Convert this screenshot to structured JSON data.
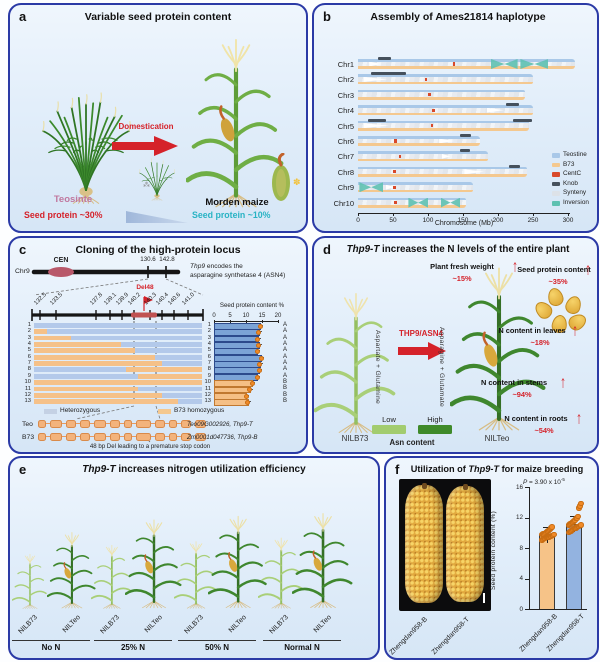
{
  "panel_a": {
    "letter": "a",
    "title": "Variable seed protein content",
    "domestication": "Domestication",
    "teosinte": "Teosinte",
    "maize": "Morden maize",
    "protein_left": "Seed protein ~30%",
    "protein_right": "Seed protein ~10%"
  },
  "panel_b": {
    "letter": "b",
    "title": "Assembly of Ames21814 haplotype",
    "xlabel": "Chromosome (Mb)",
    "xticks": [
      0,
      50,
      100,
      150,
      200,
      250,
      300
    ],
    "legend": [
      {
        "label": "Teostine",
        "color": "#a9c8e8"
      },
      {
        "label": "B73",
        "color": "#f4c88f"
      },
      {
        "label": "CentC",
        "color": "#d8492b"
      },
      {
        "label": "Knob",
        "color": "#45505c"
      },
      {
        "label": "Synteny",
        "color": "#dde2e8"
      },
      {
        "label": "Inversion",
        "color": "#5ec1b1"
      }
    ],
    "chromosomes": [
      {
        "name": "Chr1",
        "len": 310,
        "knobs": [
          [
            28,
            47
          ]
        ],
        "inversions": [
          [
            190,
            228
          ],
          [
            232,
            272
          ]
        ],
        "gaps": [
          [
            16,
            34
          ]
        ],
        "cent": 135
      },
      {
        "name": "Chr2",
        "len": 250,
        "knobs": [
          [
            18,
            68
          ]
        ],
        "inversions": [],
        "gaps": [
          [
            8,
            42
          ]
        ],
        "cent": 95
      },
      {
        "name": "Chr3",
        "len": 238,
        "knobs": [],
        "inversions": [],
        "gaps": [],
        "cent": 100
      },
      {
        "name": "Chr4",
        "len": 250,
        "knobs": [
          [
            212,
            230
          ]
        ],
        "inversions": [],
        "gaps": [
          [
            184,
            208
          ]
        ],
        "cent": 106
      },
      {
        "name": "Chr5",
        "len": 244,
        "knobs": [
          [
            14,
            40
          ],
          [
            222,
            248
          ]
        ],
        "inversions": [],
        "gaps": [
          [
            8,
            44
          ]
        ],
        "cent": 104
      },
      {
        "name": "Chr6",
        "len": 174,
        "knobs": [
          [
            146,
            162
          ]
        ],
        "inversions": [],
        "gaps": [
          [
            116,
            138
          ]
        ],
        "cent": 52
      },
      {
        "name": "Chr7",
        "len": 186,
        "knobs": [
          [
            146,
            160
          ]
        ],
        "inversions": [],
        "gaps": [
          [
            120,
            132
          ]
        ],
        "cent": 58
      },
      {
        "name": "Chr8",
        "len": 242,
        "knobs": [
          [
            216,
            232
          ]
        ],
        "inversions": [],
        "gaps": [
          [
            152,
            180
          ]
        ],
        "cent": 50
      },
      {
        "name": "Chr9",
        "len": 164,
        "knobs": [],
        "inversions": [
          [
            2,
            36
          ]
        ],
        "gaps": [
          [
            40,
            52
          ]
        ],
        "cent": 50
      },
      {
        "name": "Chr10",
        "len": 154,
        "knobs": [],
        "inversions": [
          [
            72,
            100
          ],
          [
            118,
            146
          ]
        ],
        "gaps": [],
        "cent": 52
      }
    ]
  },
  "panel_c": {
    "letter": "c",
    "title": "Cloning of the high-protein locus",
    "chr_label": "Chr9",
    "cen_label": "CEN",
    "pos_left": "130.6",
    "pos_right": "142.8",
    "note_gene": "Thp9",
    "note_line1": " encodes the",
    "note_line2": "asparagine synthetase 4 (ASN4)",
    "del_label": "Del48",
    "markers": [
      "132.5",
      "133.5",
      "137.8",
      "139.1",
      "139.9",
      "140.2",
      "140.3",
      "140.4",
      "140.6",
      "141.0"
    ],
    "chart_title": "Seed protein content %",
    "chart_ticks": [
      0,
      5,
      10,
      15,
      20
    ],
    "rows": [
      {
        "n": "1",
        "genotype": "A",
        "protein": 14.2,
        "segments": [
          [
            "het",
            0,
            1
          ]
        ]
      },
      {
        "n": "2",
        "genotype": "A",
        "protein": 13.6,
        "segments": [
          [
            "b73",
            0,
            0.08
          ],
          [
            "het",
            0.08,
            1
          ]
        ]
      },
      {
        "n": "3",
        "genotype": "A",
        "protein": 13.3,
        "segments": [
          [
            "b73",
            0,
            0.22
          ],
          [
            "het",
            0.22,
            1
          ]
        ]
      },
      {
        "n": "4",
        "genotype": "A",
        "protein": 13.6,
        "segments": [
          [
            "b73",
            0,
            0.52
          ],
          [
            "het",
            0.52,
            1
          ]
        ]
      },
      {
        "n": "5",
        "genotype": "A",
        "protein": 13.2,
        "segments": [
          [
            "b73",
            0,
            0.6
          ],
          [
            "het",
            0.6,
            1
          ]
        ]
      },
      {
        "n": "6",
        "genotype": "A",
        "protein": 14.4,
        "segments": [
          [
            "b73",
            0,
            0.72
          ],
          [
            "het",
            0.72,
            1
          ]
        ]
      },
      {
        "n": "7",
        "genotype": "A",
        "protein": 14.0,
        "segments": [
          [
            "b73",
            0,
            0.76
          ],
          [
            "het",
            0.76,
            1
          ]
        ]
      },
      {
        "n": "8",
        "genotype": "A",
        "protein": 13.8,
        "segments": [
          [
            "het",
            0,
            0.55
          ],
          [
            "b73",
            0.55,
            1
          ]
        ]
      },
      {
        "n": "9",
        "genotype": "A",
        "protein": 13.2,
        "segments": [
          [
            "het",
            0,
            0.62
          ],
          [
            "b73",
            0.62,
            1
          ]
        ]
      },
      {
        "n": "10",
        "genotype": "B",
        "protein": 11.6,
        "segments": [
          [
            "b73",
            0,
            1
          ]
        ]
      },
      {
        "n": "11",
        "genotype": "B",
        "protein": 10.8,
        "segments": [
          [
            "b73",
            0,
            0.62
          ],
          [
            "het",
            0.62,
            1
          ]
        ]
      },
      {
        "n": "12",
        "genotype": "B",
        "protein": 9.8,
        "segments": [
          [
            "b73",
            0,
            0.76
          ],
          [
            "het",
            0.76,
            1
          ]
        ]
      },
      {
        "n": "13",
        "genotype": "B",
        "protein": 10.2,
        "segments": [
          [
            "b73",
            0,
            0.86
          ],
          [
            "het",
            0.86,
            1
          ]
        ]
      }
    ],
    "legend_het": "Heterozygous",
    "legend_b73": "B73 homozygous",
    "teo_label": "Teo",
    "b73_label": "B73",
    "teo_gene": "Teo09G002926, Thp9-T",
    "b73_gene": "Zm0001d047736, Thp9-B",
    "del_note": "48 bp Del leading to a premature stop codon"
  },
  "panel_d": {
    "letter": "d",
    "title_italic": "Thp9-T",
    "title_rest": " increases the N levels of the entire plant",
    "annotations": [
      {
        "label": "Plant fresh weight",
        "value": "~15%"
      },
      {
        "label": "Seed protein content",
        "value": "~35%"
      },
      {
        "label": "N content in leaves",
        "value": "~18%"
      },
      {
        "label": "N content in stems",
        "value": "~94%"
      },
      {
        "label": "N content in roots",
        "value": "~54%"
      }
    ],
    "enzyme": "THP9/ASN4",
    "pathway_left": "Aspartate + Glutamine",
    "pathway_right": "Asparagine + Glutamate",
    "left_plant": "NILB73",
    "right_plant": "NILTeo",
    "legend_low": "Low",
    "legend_high": "High",
    "legend_title": "Asn content"
  },
  "panel_e": {
    "letter": "e",
    "title_italic": "Thp9-T",
    "title_rest": " increases nitrogen utilization efficiency",
    "plant_left": "NILB73",
    "plant_right": "NILTeo",
    "groups": [
      {
        "label": "No N",
        "b73_h": 62,
        "teo_h": 86
      },
      {
        "label": "25% N",
        "b73_h": 72,
        "teo_h": 100
      },
      {
        "label": "50% N",
        "b73_h": 76,
        "teo_h": 104
      },
      {
        "label": "Normal N",
        "b73_h": 80,
        "teo_h": 107
      }
    ]
  },
  "panel_f": {
    "letter": "f",
    "title_pre": "Utilization of ",
    "title_italic": "Thp9-T",
    "title_post": " for maize breeding",
    "cob_labels": [
      "Zhengdan958-B",
      "Zhengdan958-T"
    ],
    "p_prefix": "P",
    "p_value": " = 3.90 x 10",
    "p_exp": "-5",
    "ylabel": "Seed protein content (%)",
    "yticks": [
      0,
      4,
      8,
      12,
      16
    ],
    "bars": [
      {
        "label": "Zhengdan958-B",
        "value": 9.8,
        "color": "#f6c388",
        "dots": [
          9.2,
          9.3,
          9.4,
          9.4,
          9.5,
          9.5,
          9.6,
          9.6,
          9.7,
          9.7,
          9.8,
          9.8,
          9.9,
          9.9,
          10.0,
          10.0,
          10.1,
          10.2,
          10.3,
          10.4,
          10.5,
          10.6,
          10.8,
          10.9
        ]
      },
      {
        "label": "Zhengdan958-T",
        "value": 11.2,
        "color": "#93b3e0",
        "dots": [
          10.2,
          10.3,
          10.4,
          10.5,
          10.6,
          10.7,
          10.8,
          10.8,
          10.9,
          11.0,
          11.0,
          11.1,
          11.2,
          11.2,
          11.3,
          11.4,
          11.5,
          11.6,
          11.7,
          11.8,
          12.0,
          12.1,
          12.3,
          13.4,
          13.7,
          14.0
        ]
      }
    ]
  },
  "chart_data": [
    {
      "type": "bar",
      "panel": "b",
      "title": "Assembly of Ames21814 haplotype",
      "xlabel": "Chromosome (Mb)",
      "xlim": [
        0,
        320
      ],
      "categories": [
        "Chr1",
        "Chr2",
        "Chr3",
        "Chr4",
        "Chr5",
        "Chr6",
        "Chr7",
        "Chr8",
        "Chr9",
        "Chr10"
      ],
      "values": [
        310,
        250,
        238,
        250,
        244,
        174,
        186,
        242,
        164,
        154
      ],
      "legend": [
        "Teostine",
        "B73",
        "CentC",
        "Knob",
        "Synteny",
        "Inversion"
      ],
      "legend_position": "right"
    },
    {
      "type": "bar",
      "panel": "c",
      "orientation": "horizontal",
      "title": "Seed protein content %",
      "xlim": [
        0,
        20
      ],
      "categories": [
        "1",
        "2",
        "3",
        "4",
        "5",
        "6",
        "7",
        "8",
        "9",
        "10",
        "11",
        "12",
        "13"
      ],
      "values": [
        14.2,
        13.6,
        13.3,
        13.6,
        13.2,
        14.4,
        14.0,
        13.8,
        13.2,
        11.6,
        10.8,
        9.8,
        10.2
      ],
      "group_labels": [
        "A",
        "A",
        "A",
        "A",
        "A",
        "A",
        "A",
        "A",
        "A",
        "B",
        "B",
        "B",
        "B"
      ]
    },
    {
      "type": "bar",
      "panel": "f",
      "title": "Utilization of Thp9-T for maize breeding",
      "ylabel": "Seed protein content (%)",
      "ylim": [
        0,
        16
      ],
      "categories": [
        "Zhengdan958-B",
        "Zhengdan958-T"
      ],
      "values": [
        9.8,
        11.2
      ],
      "annotation": "P = 3.90 x 10^-5"
    }
  ]
}
